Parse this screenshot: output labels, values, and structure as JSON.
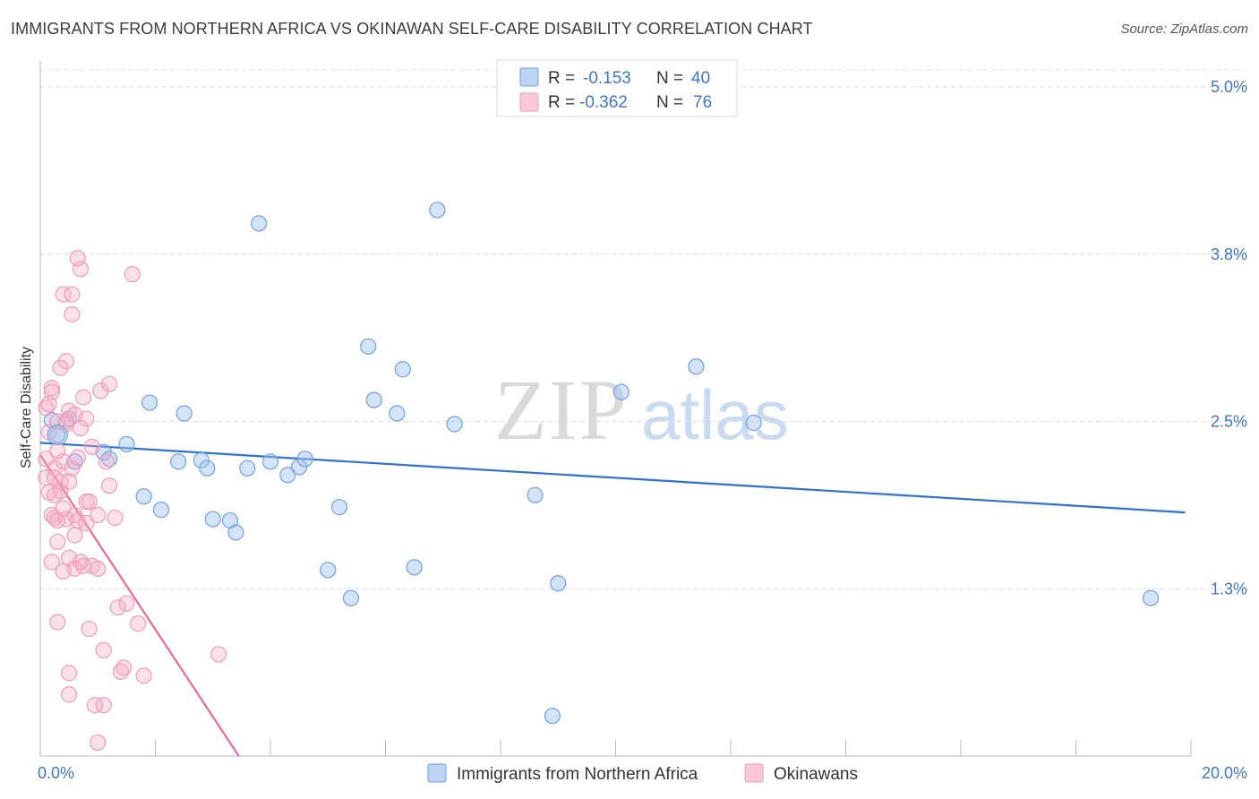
{
  "title": "IMMIGRANTS FROM NORTHERN AFRICA VS OKINAWAN SELF-CARE DISABILITY CORRELATION CHART",
  "source": "Source: ZipAtlas.com",
  "watermark": {
    "zip": "ZIP",
    "atlas": "atlas"
  },
  "chart_data": {
    "type": "scatter",
    "xlabel": "",
    "ylabel": "Self-Care Disability",
    "xlim": [
      0.0,
      20.0
    ],
    "ylim": [
      0.0,
      5.0
    ],
    "x_tick_labels": [
      "0.0%",
      "20.0%"
    ],
    "y_ticks": [
      1.25,
      2.5,
      3.75,
      5.0
    ],
    "y_tick_labels": [
      "1.3%",
      "2.5%",
      "3.8%",
      "5.0%"
    ],
    "grid": true,
    "legend_position": "top-center",
    "series": [
      {
        "name": "Immigrants from Northern Africa",
        "color": "#6fa0e0",
        "line_color": "#2f72cf",
        "R_label": "R =",
        "R": "-0.153",
        "N_label": "N =",
        "N": "40",
        "trend": {
          "x": [
            0.0,
            19.9
          ],
          "y": [
            2.34,
            1.82
          ]
        },
        "points": [
          [
            0.3,
            2.4
          ],
          [
            0.5,
            2.52
          ],
          [
            1.1,
            2.27
          ],
          [
            1.2,
            2.22
          ],
          [
            1.5,
            2.33
          ],
          [
            1.8,
            1.94
          ],
          [
            1.9,
            2.64
          ],
          [
            2.1,
            1.84
          ],
          [
            2.4,
            2.2
          ],
          [
            2.5,
            2.56
          ],
          [
            2.8,
            2.21
          ],
          [
            2.9,
            2.15
          ],
          [
            3.0,
            1.77
          ],
          [
            3.3,
            1.76
          ],
          [
            3.4,
            1.67
          ],
          [
            3.6,
            2.15
          ],
          [
            3.8,
            3.98
          ],
          [
            4.3,
            2.1
          ],
          [
            4.5,
            2.16
          ],
          [
            4.6,
            2.22
          ],
          [
            5.0,
            1.39
          ],
          [
            5.2,
            1.86
          ],
          [
            5.4,
            1.18
          ],
          [
            5.7,
            3.06
          ],
          [
            5.8,
            2.66
          ],
          [
            6.2,
            2.56
          ],
          [
            6.3,
            2.89
          ],
          [
            6.5,
            1.41
          ],
          [
            6.9,
            4.08
          ],
          [
            7.2,
            2.48
          ],
          [
            8.6,
            1.95
          ],
          [
            8.9,
            0.3
          ],
          [
            9.0,
            1.29
          ],
          [
            10.1,
            2.72
          ],
          [
            11.4,
            2.91
          ],
          [
            12.4,
            2.49
          ],
          [
            19.3,
            1.18
          ],
          [
            0.6,
            2.2
          ],
          [
            0.2,
            2.51
          ],
          [
            4.0,
            2.2
          ]
        ]
      },
      {
        "name": "Okinawans",
        "color": "#f09bb8",
        "line_color": "#e8689a",
        "R_label": "R =",
        "R": "-0.362",
        "N_label": "N =",
        "N": "76",
        "trend": {
          "x": [
            0.0,
            3.45
          ],
          "y": [
            2.25,
            0.0
          ]
        },
        "points": [
          [
            0.1,
            2.6
          ],
          [
            0.1,
            2.22
          ],
          [
            0.1,
            2.08
          ],
          [
            0.15,
            1.97
          ],
          [
            0.15,
            2.42
          ],
          [
            0.2,
            1.8
          ],
          [
            0.2,
            1.45
          ],
          [
            0.2,
            2.75
          ],
          [
            0.25,
            2.15
          ],
          [
            0.25,
            1.78
          ],
          [
            0.3,
            1.0
          ],
          [
            0.3,
            1.6
          ],
          [
            0.3,
            2.5
          ],
          [
            0.35,
            1.98
          ],
          [
            0.35,
            2.05
          ],
          [
            0.4,
            1.38
          ],
          [
            0.4,
            2.2
          ],
          [
            0.4,
            3.45
          ],
          [
            0.45,
            1.77
          ],
          [
            0.45,
            2.48
          ],
          [
            0.5,
            2.58
          ],
          [
            0.5,
            0.62
          ],
          [
            0.5,
            0.46
          ],
          [
            0.5,
            1.48
          ],
          [
            0.55,
            3.45
          ],
          [
            0.55,
            3.3
          ],
          [
            0.6,
            1.65
          ],
          [
            0.6,
            1.8
          ],
          [
            0.6,
            2.55
          ],
          [
            0.65,
            1.76
          ],
          [
            0.65,
            3.72
          ],
          [
            0.7,
            3.64
          ],
          [
            0.7,
            1.45
          ],
          [
            0.75,
            2.68
          ],
          [
            0.8,
            1.9
          ],
          [
            0.8,
            2.52
          ],
          [
            0.8,
            1.74
          ],
          [
            0.85,
            0.95
          ],
          [
            0.85,
            1.9
          ],
          [
            0.9,
            1.42
          ],
          [
            0.95,
            0.38
          ],
          [
            1.0,
            0.1
          ],
          [
            1.0,
            1.4
          ],
          [
            1.05,
            2.73
          ],
          [
            1.1,
            0.38
          ],
          [
            1.1,
            0.79
          ],
          [
            1.15,
            2.2
          ],
          [
            1.2,
            2.78
          ],
          [
            1.2,
            2.02
          ],
          [
            1.3,
            1.78
          ],
          [
            1.35,
            1.11
          ],
          [
            1.4,
            0.63
          ],
          [
            1.45,
            0.66
          ],
          [
            1.5,
            1.14
          ],
          [
            1.6,
            3.6
          ],
          [
            1.7,
            0.99
          ],
          [
            1.8,
            0.6
          ],
          [
            0.15,
            2.63
          ],
          [
            0.25,
            1.95
          ],
          [
            0.3,
            2.28
          ],
          [
            0.35,
            2.9
          ],
          [
            0.45,
            2.95
          ],
          [
            0.55,
            2.15
          ],
          [
            0.65,
            2.23
          ],
          [
            0.7,
            2.45
          ],
          [
            0.9,
            2.31
          ],
          [
            1.0,
            1.8
          ],
          [
            0.2,
            2.72
          ],
          [
            0.3,
            1.76
          ],
          [
            0.4,
            1.85
          ],
          [
            0.5,
            2.05
          ],
          [
            0.6,
            1.4
          ],
          [
            0.75,
            1.42
          ],
          [
            3.1,
            0.76
          ],
          [
            0.25,
            2.08
          ],
          [
            0.45,
            2.5
          ]
        ]
      }
    ]
  }
}
